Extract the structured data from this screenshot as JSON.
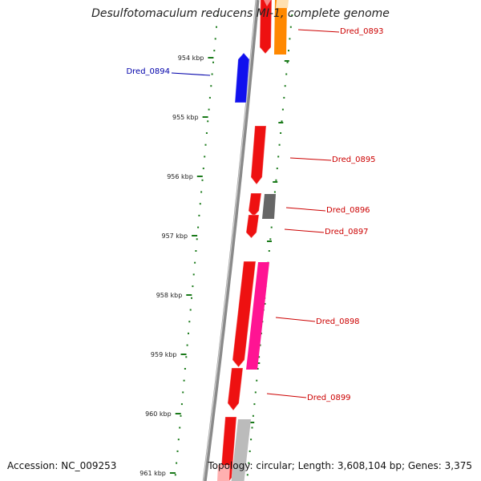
{
  "title": "Desulfotomaculum reducens MI-1, complete genome",
  "accession_text": "Accession: NC_009253",
  "topology_text": "Topology: circular; Length: 3,608,104 bp; Genes: 3,375",
  "colors": {
    "backbone": "#8a8a8a",
    "ticks": "#1a7a1a",
    "forward_gene": "#ee1111",
    "reverse_gene": "#1111ee",
    "rna_gene": "#ff8800",
    "hypothetical_gene": "#ff1493",
    "other_gene": "#666666",
    "light_gene": "#bbbbbb",
    "label_red": "#cc0000",
    "label_blue": "#0000aa"
  },
  "scale_ticks": [
    {
      "label": "954 kbp"
    },
    {
      "label": "955 kbp"
    },
    {
      "label": "956 kbp"
    },
    {
      "label": "957 kbp"
    },
    {
      "label": "958 kbp"
    },
    {
      "label": "959 kbp"
    },
    {
      "label": "960 kbp"
    },
    {
      "label": "961 kbp"
    }
  ],
  "gene_labels": [
    {
      "name": "Dred_0893",
      "strand": "forward"
    },
    {
      "name": "Dred_0894",
      "strand": "reverse"
    },
    {
      "name": "Dred_0895",
      "strand": "forward"
    },
    {
      "name": "Dred_0896",
      "strand": "forward"
    },
    {
      "name": "Dred_0897",
      "strand": "forward"
    },
    {
      "name": "Dred_0898",
      "strand": "forward"
    },
    {
      "name": "Dred_0899",
      "strand": "forward"
    }
  ]
}
